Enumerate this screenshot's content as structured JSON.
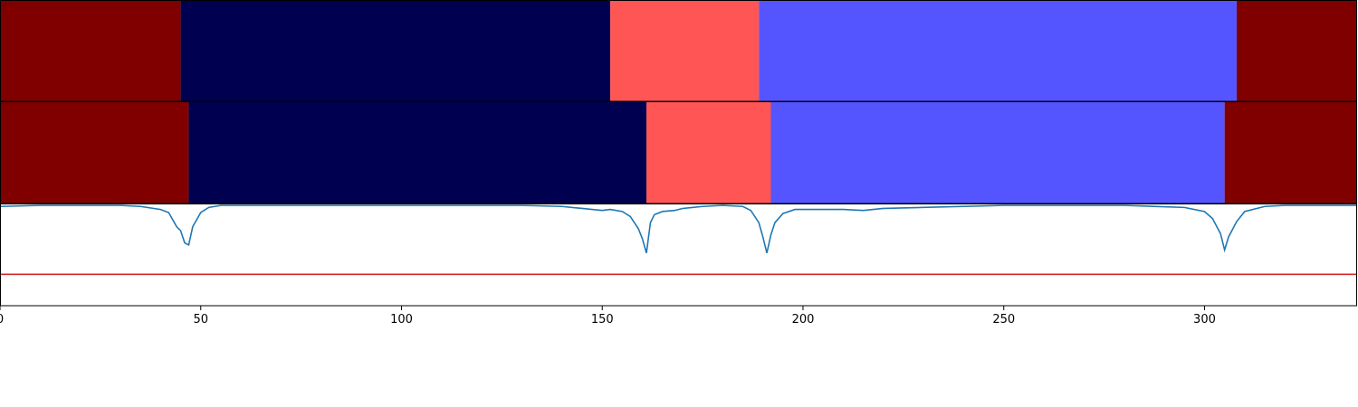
{
  "chart_data": {
    "type": "segmentation-timeline",
    "title": "",
    "xlabel": "",
    "ylabel": "",
    "xlim": [
      0,
      338
    ],
    "xticks": [
      0,
      50,
      100,
      150,
      200,
      250,
      300
    ],
    "xtick_labels": [
      "0",
      "50",
      "100",
      "150",
      "200",
      "250",
      "300"
    ],
    "colors": {
      "dark_red": "#800000",
      "navy": "#000050",
      "salmon": "#ff5555",
      "periwinkle": "#5555ff",
      "confidence_line": "#1f77b4",
      "threshold_line": "#d62728"
    },
    "strips": [
      {
        "segments": [
          {
            "start": 0,
            "end": 45,
            "color": "#800000"
          },
          {
            "start": 45,
            "end": 152,
            "color": "#000050"
          },
          {
            "start": 152,
            "end": 189,
            "color": "#ff5555"
          },
          {
            "start": 189,
            "end": 308,
            "color": "#5555ff"
          },
          {
            "start": 308,
            "end": 338,
            "color": "#800000"
          }
        ]
      },
      {
        "segments": [
          {
            "start": 0,
            "end": 47,
            "color": "#800000"
          },
          {
            "start": 47,
            "end": 161,
            "color": "#000050"
          },
          {
            "start": 161,
            "end": 192,
            "color": "#ff5555"
          },
          {
            "start": 192,
            "end": 305,
            "color": "#5555ff"
          },
          {
            "start": 305,
            "end": 338,
            "color": "#800000"
          }
        ]
      }
    ],
    "confidence": {
      "ylim": [
        0,
        1
      ],
      "threshold": 0.31,
      "x": [
        0,
        10,
        20,
        30,
        35,
        40,
        42,
        44,
        45,
        46,
        47,
        48,
        50,
        52,
        55,
        60,
        80,
        100,
        130,
        140,
        145,
        150,
        152,
        155,
        157,
        159,
        160,
        161,
        162,
        163,
        165,
        168,
        170,
        175,
        180,
        185,
        187,
        189,
        190,
        191,
        192,
        193,
        195,
        198,
        200,
        205,
        210,
        215,
        220,
        230,
        250,
        280,
        295,
        300,
        302,
        304,
        305,
        306,
        308,
        310,
        315,
        320,
        338
      ],
      "y": [
        0.98,
        0.99,
        0.99,
        0.99,
        0.98,
        0.95,
        0.92,
        0.78,
        0.74,
        0.62,
        0.6,
        0.78,
        0.92,
        0.97,
        0.99,
        0.99,
        0.99,
        0.99,
        0.99,
        0.98,
        0.96,
        0.94,
        0.95,
        0.93,
        0.88,
        0.76,
        0.66,
        0.52,
        0.82,
        0.9,
        0.93,
        0.94,
        0.96,
        0.98,
        0.99,
        0.98,
        0.94,
        0.82,
        0.68,
        0.52,
        0.7,
        0.82,
        0.91,
        0.95,
        0.95,
        0.95,
        0.95,
        0.94,
        0.96,
        0.97,
        0.99,
        0.99,
        0.97,
        0.93,
        0.86,
        0.71,
        0.55,
        0.68,
        0.83,
        0.93,
        0.98,
        0.99,
        0.99
      ]
    }
  }
}
